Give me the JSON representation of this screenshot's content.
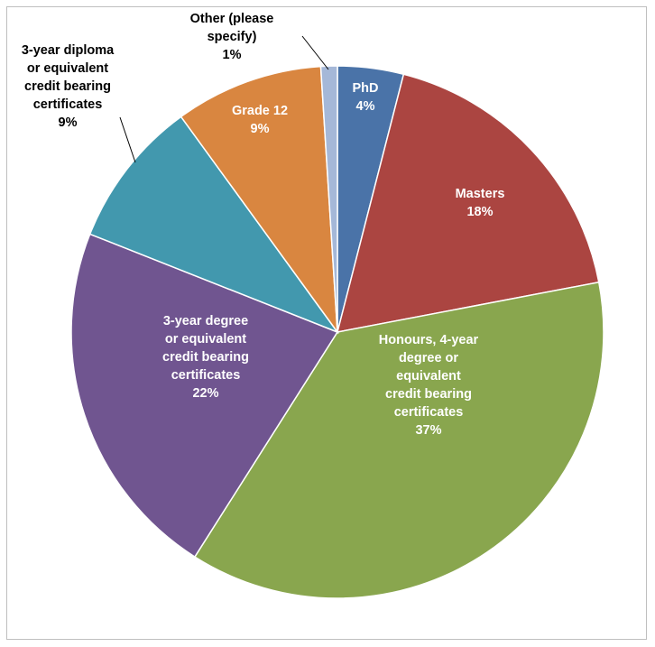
{
  "chart_data": {
    "type": "pie",
    "title": "",
    "slices": [
      {
        "label": "PhD",
        "display_label": [
          "PhD"
        ],
        "value": 4,
        "value_text": "4%",
        "color": "#4a73a8",
        "text_color": "#ffffff",
        "label_outside": false
      },
      {
        "label": "Masters",
        "display_label": [
          "Masters"
        ],
        "value": 18,
        "value_text": "18%",
        "color": "#ab4541",
        "text_color": "#ffffff",
        "label_outside": false
      },
      {
        "label": "Honours, 4-year degree or equivalent credit bearing certificates",
        "display_label": [
          "Honours, 4-year",
          "degree or",
          "equivalent",
          "credit bearing",
          "certificates"
        ],
        "value": 37,
        "value_text": "37%",
        "color": "#89a64e",
        "text_color": "#ffffff",
        "label_outside": false
      },
      {
        "label": "3-year degree or equivalent credit bearing certificates",
        "display_label": [
          "3-year degree",
          "or equivalent",
          "credit bearing",
          "certificates"
        ],
        "value": 22,
        "value_text": "22%",
        "color": "#705590",
        "text_color": "#ffffff",
        "label_outside": false
      },
      {
        "label": "3-year diploma or equivalent credit bearing certificates",
        "display_label": [
          "3-year diploma",
          "or equivalent",
          "credit bearing",
          "certificates"
        ],
        "value": 9,
        "value_text": "9%",
        "color": "#4298ae",
        "text_color": "#000000",
        "label_outside": true
      },
      {
        "label": "Grade 12",
        "display_label": [
          "Grade 12"
        ],
        "value": 9,
        "value_text": "9%",
        "color": "#d98640",
        "text_color": "#ffffff",
        "label_outside": false
      },
      {
        "label": "Other (please specify)",
        "display_label": [
          "Other (please",
          "specify)"
        ],
        "value": 1,
        "value_text": "1%",
        "color": "#a5b8d8",
        "text_color": "#000000",
        "label_outside": true
      }
    ]
  }
}
